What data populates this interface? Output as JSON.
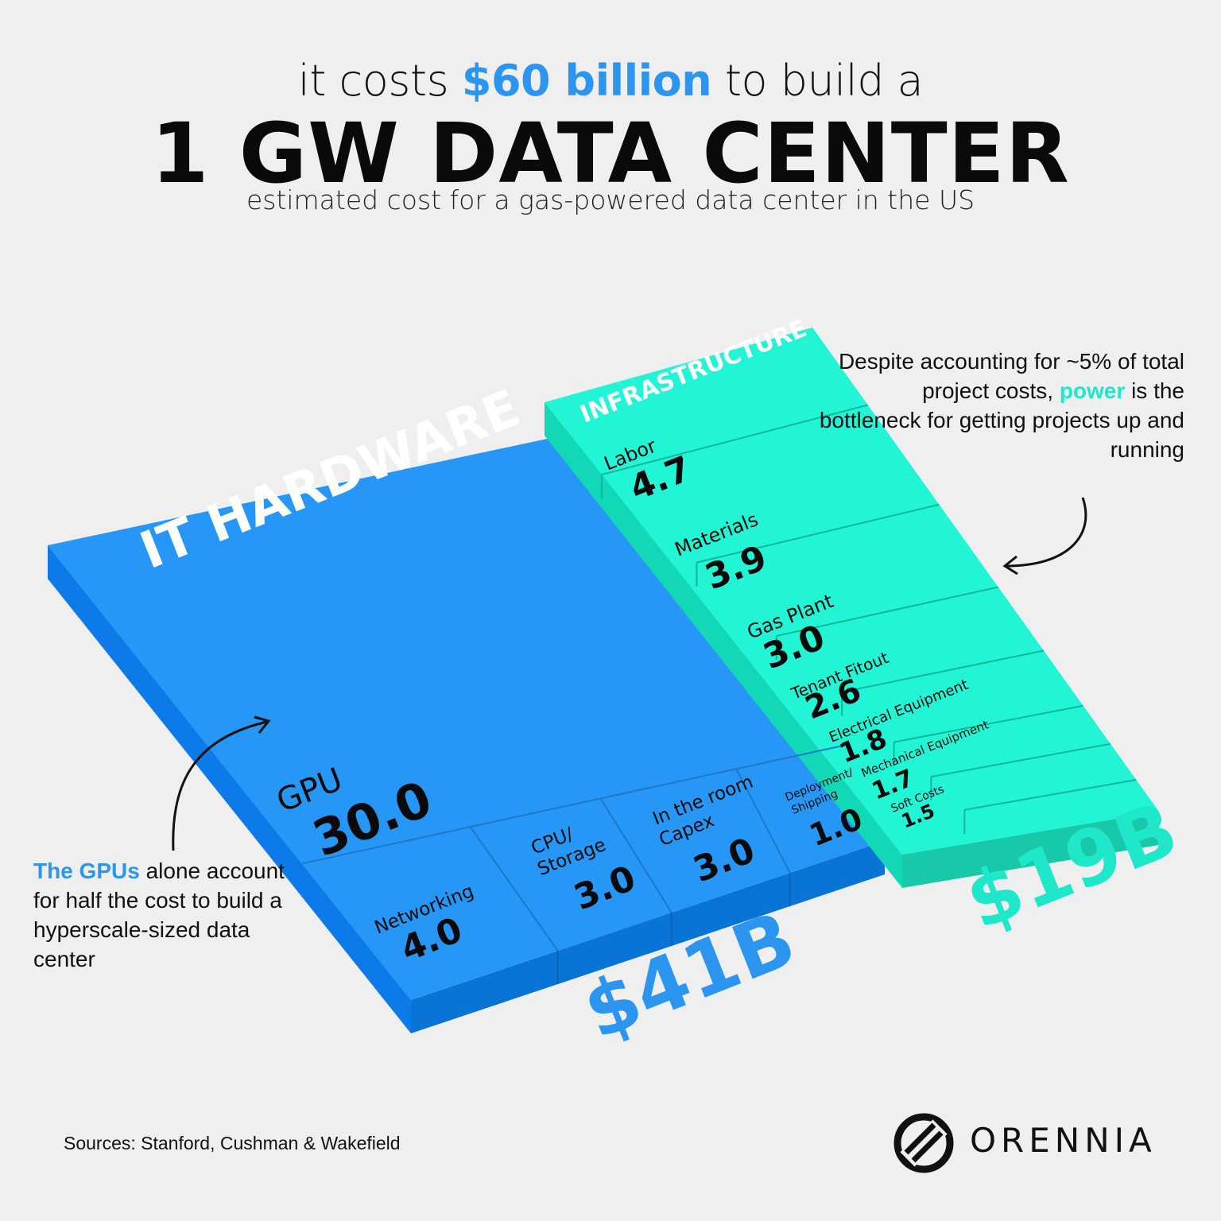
{
  "header": {
    "headline_pre": "it costs",
    "headline_accent": "$60 billion",
    "headline_post": "to build a",
    "title": "1 GW DATA CENTER",
    "subtitle": "estimated cost for a gas-powered data center in the US"
  },
  "colors": {
    "it_top": "#2697f7",
    "it_side": "#0c7ae8",
    "it_front": "#0a73d6",
    "infra_top": "#22f5d5",
    "infra_side": "#12d8b6",
    "infra_front": "#17c9a8",
    "accent_blue": "#2b95ef",
    "accent_teal": "#1ee8c9"
  },
  "chart_data": {
    "type": "treemap",
    "unit": "$B",
    "groups": [
      {
        "name": "IT HARDWARE",
        "total_label": "$41B",
        "items": [
          {
            "label": "GPU",
            "value": 30.0,
            "value_label": "30.0"
          },
          {
            "label": "Networking",
            "value": 4.0,
            "value_label": "4.0"
          },
          {
            "label": "CPU/ Storage",
            "value": 3.0,
            "value_label": "3.0"
          },
          {
            "label": "In the room Capex",
            "value": 3.0,
            "value_label": "3.0"
          },
          {
            "label": "Deployment/ Shipping",
            "value": 1.0,
            "value_label": "1.0"
          }
        ]
      },
      {
        "name": "INFRASTRUCTURE",
        "total_label": "$19B",
        "items": [
          {
            "label": "Labor",
            "value": 4.7,
            "value_label": "4.7"
          },
          {
            "label": "Materials",
            "value": 3.9,
            "value_label": "3.9"
          },
          {
            "label": "Gas Plant",
            "value": 3.0,
            "value_label": "3.0"
          },
          {
            "label": "Tenant Fitout",
            "value": 2.6,
            "value_label": "2.6"
          },
          {
            "label": "Electrical Equipment",
            "value": 1.8,
            "value_label": "1.8"
          },
          {
            "label": "Mechanical Equipment",
            "value": 1.7,
            "value_label": "1.7"
          },
          {
            "label": "Soft Costs",
            "value": 1.5,
            "value_label": "1.5"
          }
        ]
      }
    ]
  },
  "notes": {
    "right_pre": "Despite accounting for ~5% of total project costs,",
    "right_accent": "power",
    "right_post": "is the bottleneck for getting projects up and running",
    "left_accent": "The GPUs",
    "left_post": "alone account for half the cost to build a hyperscale-sized data center"
  },
  "footer": {
    "sources": "Sources: Stanford, Cushman & Wakefield",
    "logo_text": "ORENNIA"
  }
}
